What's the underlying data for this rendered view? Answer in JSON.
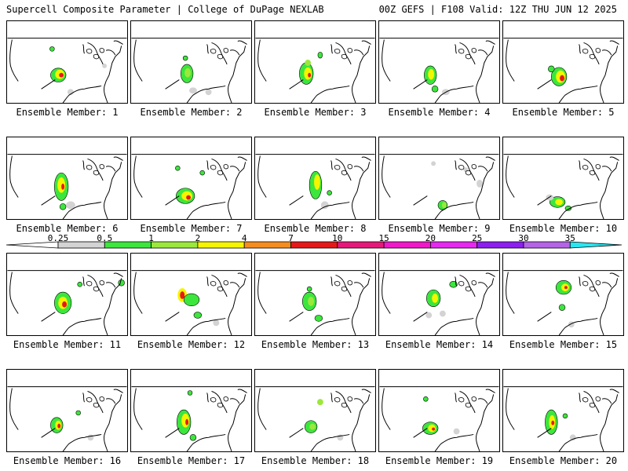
{
  "header": {
    "title_left": "Supercell Composite Parameter | College of DuPage NEXLAB",
    "title_right": "00Z GEFS | F108 Valid: 12Z THU JUN 12 2025"
  },
  "panels": [
    {
      "label": "Ensemble Member: 1"
    },
    {
      "label": "Ensemble Member: 2"
    },
    {
      "label": "Ensemble Member: 3"
    },
    {
      "label": "Ensemble Member: 4"
    },
    {
      "label": "Ensemble Member: 5"
    },
    {
      "label": "Ensemble Member: 6"
    },
    {
      "label": "Ensemble Member: 7"
    },
    {
      "label": "Ensemble Member: 8"
    },
    {
      "label": "Ensemble Member: 9"
    },
    {
      "label": "Ensemble Member: 10"
    },
    {
      "label": "Ensemble Member: 11"
    },
    {
      "label": "Ensemble Member: 12"
    },
    {
      "label": "Ensemble Member: 13"
    },
    {
      "label": "Ensemble Member: 14"
    },
    {
      "label": "Ensemble Member: 15"
    },
    {
      "label": "Ensemble Member: 16"
    },
    {
      "label": "Ensemble Member: 17"
    },
    {
      "label": "Ensemble Member: 18"
    },
    {
      "label": "Ensemble Member: 19"
    },
    {
      "label": "Ensemble Member: 20"
    }
  ],
  "colorbar": {
    "ticks": [
      "0.25",
      "0.5",
      "1",
      "2",
      "4",
      "7",
      "10",
      "15",
      "20",
      "25",
      "30",
      "35"
    ],
    "colors": [
      "#d3d3d3",
      "#3ce63c",
      "#9be83c",
      "#f5f500",
      "#f58c1e",
      "#e61919",
      "#e6197a",
      "#f019c8",
      "#e628f0",
      "#8c1ef0",
      "#b464e6",
      "#28e6f0"
    ]
  }
}
